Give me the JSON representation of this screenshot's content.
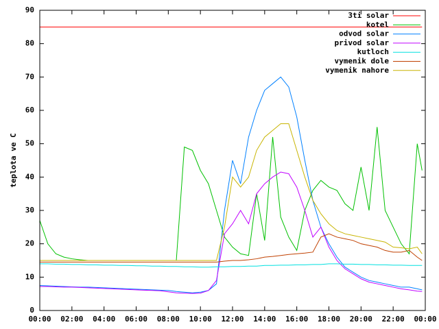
{
  "chart_data": {
    "type": "line",
    "y_label": "teplota ve C",
    "x": [
      0,
      0.5,
      1,
      1.5,
      2,
      2.5,
      3,
      3.5,
      4,
      4.5,
      5,
      5.5,
      6,
      6.5,
      7,
      7.5,
      8,
      8.5,
      9,
      9.5,
      10,
      10.5,
      11,
      11.5,
      12,
      12.5,
      13,
      13.5,
      14,
      14.5,
      15,
      15.5,
      16,
      16.5,
      17,
      17.5,
      18,
      18.5,
      19,
      19.5,
      20,
      20.5,
      21,
      21.5,
      22,
      22.5,
      23,
      23.5,
      23.8
    ],
    "xlim": [
      0,
      24
    ],
    "xticks": [
      {
        "value": 0,
        "label": "00:00"
      },
      {
        "value": 2,
        "label": "02:00"
      },
      {
        "value": 4,
        "label": "04:00"
      },
      {
        "value": 6,
        "label": "06:00"
      },
      {
        "value": 8,
        "label": "08:00"
      },
      {
        "value": 10,
        "label": "10:00"
      },
      {
        "value": 12,
        "label": "12:00"
      },
      {
        "value": 14,
        "label": "14:00"
      },
      {
        "value": 16,
        "label": "16:00"
      },
      {
        "value": 18,
        "label": "18:00"
      },
      {
        "value": 20,
        "label": "20:00"
      },
      {
        "value": 22,
        "label": "22:00"
      },
      {
        "value": 24,
        "label": "00:00"
      }
    ],
    "ylim": [
      0,
      90
    ],
    "yticks": [
      0,
      10,
      20,
      30,
      40,
      50,
      60,
      70,
      80,
      90
    ],
    "legend": "top-right",
    "series": [
      {
        "name": "3ti solar",
        "color": "#ff0000",
        "values": [
          85,
          85,
          85,
          85,
          85,
          85,
          85,
          85,
          85,
          85,
          85,
          85,
          85,
          85,
          85,
          85,
          85,
          85,
          85,
          85,
          85,
          85,
          85,
          85,
          85,
          85,
          85,
          85,
          85,
          85,
          85,
          85,
          85,
          85,
          85,
          85,
          85,
          85,
          85,
          85,
          85,
          85,
          85,
          85,
          85,
          85,
          85,
          85,
          85
        ]
      },
      {
        "name": "kotel",
        "color": "#00c000",
        "values": [
          27,
          20,
          17,
          16,
          15.5,
          15.2,
          15,
          15,
          15,
          15,
          15,
          15,
          15,
          15,
          15,
          15,
          15,
          15,
          49,
          48,
          42,
          38,
          30,
          22,
          19,
          17,
          16.5,
          35,
          21,
          52,
          28,
          22,
          18,
          30,
          36,
          39,
          37,
          36,
          32,
          30,
          43,
          30,
          55,
          30,
          25,
          20,
          17,
          50,
          42
        ]
      },
      {
        "name": "odvod solar",
        "color": "#0080ff",
        "values": [
          7.5,
          7.4,
          7.3,
          7.2,
          7.1,
          7,
          7,
          6.9,
          6.8,
          6.7,
          6.6,
          6.5,
          6.4,
          6.3,
          6.2,
          6.1,
          6,
          5.7,
          5.5,
          5.3,
          5.5,
          6,
          8,
          30,
          45,
          38,
          52,
          60,
          66,
          68,
          70,
          67,
          58,
          45,
          33,
          25,
          20,
          16,
          13,
          11.5,
          10,
          9,
          8.5,
          8,
          7.5,
          7,
          7,
          6.5,
          6.2
        ]
      },
      {
        "name": "privod solar",
        "color": "#c000ff",
        "values": [
          7.2,
          7.2,
          7.1,
          7,
          7,
          6.9,
          6.8,
          6.7,
          6.6,
          6.5,
          6.4,
          6.3,
          6.2,
          6.1,
          6,
          5.9,
          5.6,
          5.3,
          5.2,
          5.1,
          5.2,
          6,
          9,
          23,
          26,
          30,
          26,
          35,
          38,
          40,
          41.5,
          41,
          37,
          30,
          22,
          25,
          19,
          15,
          12.5,
          11,
          9.5,
          8.5,
          8,
          7.5,
          7,
          6.5,
          6.2,
          5.8,
          5.7
        ]
      },
      {
        "name": "kutloch",
        "color": "#00e0e0",
        "values": [
          14,
          14,
          13.9,
          13.9,
          13.8,
          13.8,
          13.7,
          13.7,
          13.6,
          13.6,
          13.5,
          13.5,
          13.4,
          13.4,
          13.3,
          13.3,
          13.2,
          13.2,
          13.1,
          13.1,
          13,
          13,
          13.1,
          13.1,
          13.2,
          13.2,
          13.3,
          13.3,
          13.5,
          13.5,
          13.6,
          13.6,
          13.7,
          13.7,
          13.8,
          13.8,
          14,
          14,
          13.9,
          13.9,
          13.8,
          13.8,
          13.7,
          13.7,
          13.6,
          13.6,
          13.5,
          13.5,
          13.5
        ]
      },
      {
        "name": "vymenik dole",
        "color": "#c04000",
        "values": [
          14.5,
          14.5,
          14.5,
          14.5,
          14.5,
          14.5,
          14.5,
          14.5,
          14.5,
          14.5,
          14.5,
          14.5,
          14.5,
          14.5,
          14.5,
          14.5,
          14.5,
          14.5,
          14.5,
          14.5,
          14.5,
          14.5,
          14.5,
          14.8,
          15,
          15,
          15.2,
          15.5,
          16,
          16.2,
          16.5,
          16.8,
          17,
          17.2,
          17.5,
          22,
          23,
          22,
          21.5,
          21,
          20,
          19.5,
          19,
          18,
          17.5,
          17.5,
          18,
          16,
          15
        ]
      },
      {
        "name": "vymenik nahore",
        "color": "#c8b400",
        "values": [
          15,
          15,
          15,
          15,
          15,
          15,
          15,
          15,
          15,
          15,
          15,
          15,
          15,
          15,
          15,
          15,
          15,
          15,
          15,
          15,
          15,
          15,
          15,
          25,
          40,
          37,
          40,
          48,
          52,
          54,
          56,
          56,
          48,
          40,
          33,
          29,
          26,
          24,
          23,
          22.5,
          22,
          21.5,
          21,
          20.5,
          19,
          18.8,
          18.5,
          19,
          17
        ]
      }
    ]
  }
}
